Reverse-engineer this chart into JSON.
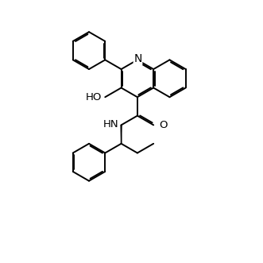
{
  "background_color": "#ffffff",
  "line_color": "#000000",
  "line_width": 1.4,
  "font_size": 9.5,
  "figsize": [
    3.31,
    3.31
  ],
  "dpi": 100,
  "xlim": [
    0,
    10
  ],
  "ylim": [
    0,
    10
  ]
}
